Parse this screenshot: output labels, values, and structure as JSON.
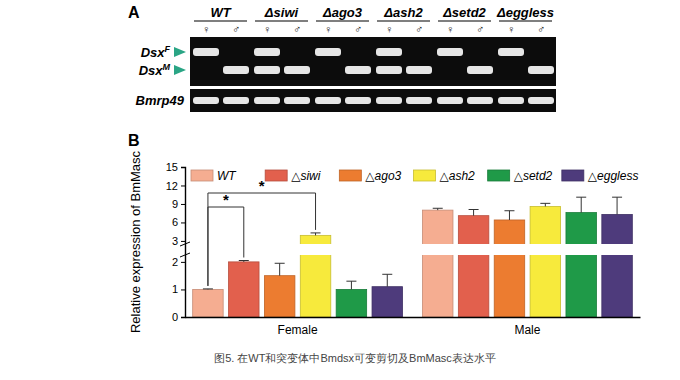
{
  "panels": [
    "A",
    "B"
  ],
  "caption": "图5. 在WT和突变体中Bmdsx可变剪切及BmMasc表达水平",
  "gel": {
    "sexes": [
      "♀",
      "♂"
    ],
    "bands": [
      {
        "name": "Dsx",
        "sup": "F"
      },
      {
        "name": "Dsx",
        "sup": "M"
      }
    ],
    "control": "Bmrp49",
    "groups": [
      {
        "name": "WT",
        "female": [
          true,
          false
        ],
        "male": [
          false,
          true
        ]
      },
      {
        "name": "Δsiwi",
        "female": [
          true,
          true
        ],
        "male": [
          false,
          true
        ]
      },
      {
        "name": "Δago3",
        "female": [
          true,
          false
        ],
        "male": [
          false,
          true
        ]
      },
      {
        "name": "Δash2",
        "female": [
          true,
          true
        ],
        "male": [
          false,
          true
        ]
      },
      {
        "name": "Δsetd2",
        "female": [
          true,
          false
        ],
        "male": [
          false,
          true
        ]
      },
      {
        "name": "Δeggless",
        "female": [
          true,
          false
        ],
        "male": [
          false,
          true
        ]
      }
    ]
  },
  "chart_data": {
    "type": "bar",
    "ylabel": "Relative expression of BmMasc",
    "categories": [
      "Female",
      "Male"
    ],
    "series": [
      {
        "name": "WT",
        "color": "#f5ad91",
        "values": [
          1.0,
          8.0
        ],
        "errors": [
          0.02,
          0.3
        ]
      },
      {
        "name": "△siwi",
        "color": "#e2604d",
        "values": [
          2.0,
          7.1
        ],
        "errors": [
          0.05,
          1.0
        ]
      },
      {
        "name": "△ago3",
        "color": "#ec7c30",
        "values": [
          1.5,
          6.4
        ],
        "errors": [
          0.45,
          1.5
        ]
      },
      {
        "name": "△ash2",
        "color": "#f7ea3c",
        "values": [
          3.9,
          8.6
        ],
        "errors": [
          0.4,
          0.5
        ]
      },
      {
        "name": "△setd2",
        "color": "#1f9a48",
        "values": [
          1.0,
          7.6
        ],
        "errors": [
          0.3,
          2.5
        ]
      },
      {
        "name": "△eggless",
        "color": "#4e3b7c",
        "values": [
          1.1,
          7.3
        ],
        "errors": [
          0.45,
          2.8
        ]
      }
    ],
    "ylim": [
      0,
      15
    ],
    "y_break": [
      2.25,
      2.5
    ],
    "yticks": [
      0,
      1,
      2,
      3,
      6,
      9,
      12,
      15
    ],
    "legend": "top",
    "annotations": [
      {
        "text": "*",
        "category": 0,
        "series": [
          0,
          1
        ]
      },
      {
        "text": "*",
        "category": 0,
        "series": [
          0,
          3
        ]
      }
    ]
  }
}
